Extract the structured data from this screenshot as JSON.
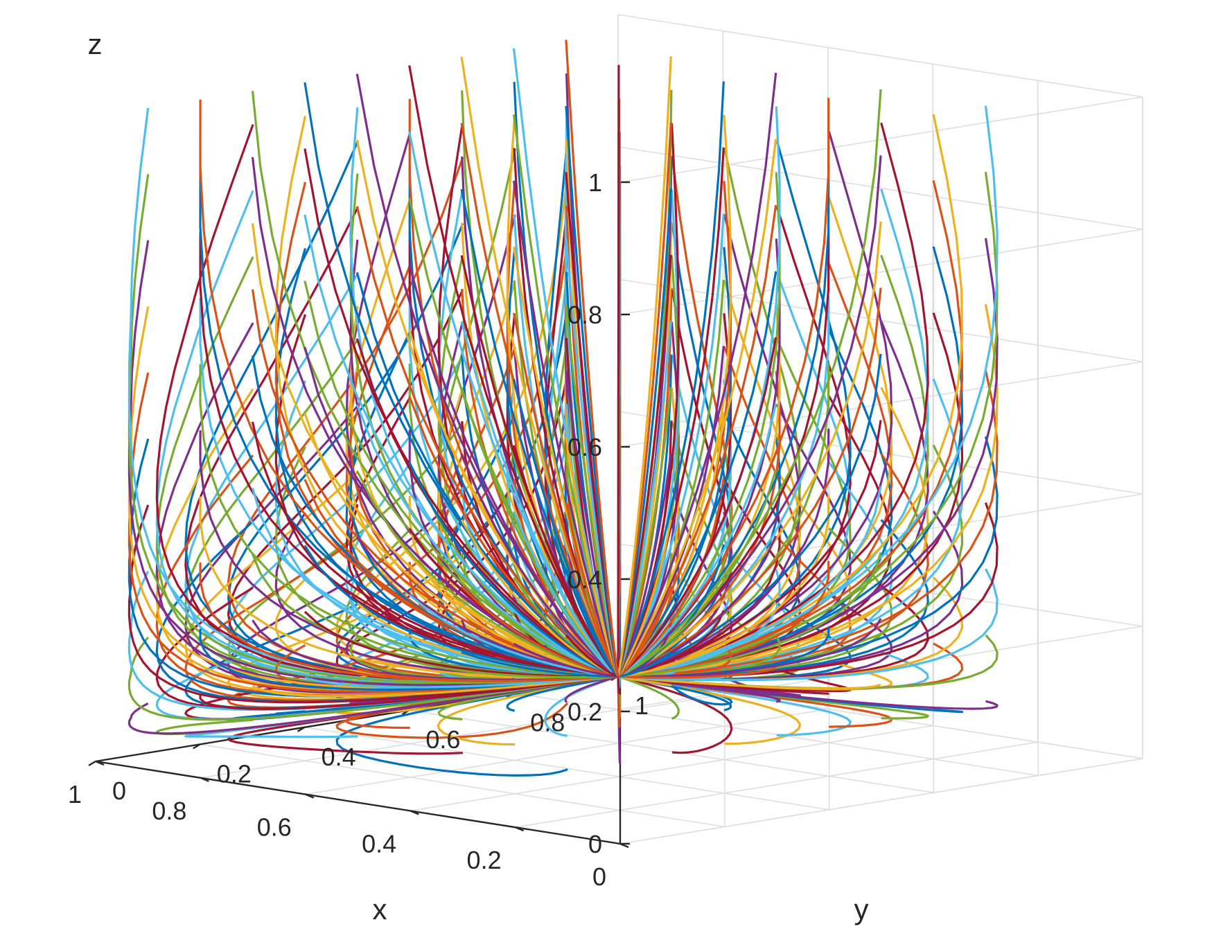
{
  "chart_data": {
    "type": "line",
    "projection": "3d",
    "xlabel": "x",
    "ylabel": "y",
    "zlabel": "z",
    "xlim": [
      0,
      1
    ],
    "ylim": [
      0,
      1
    ],
    "zlim": [
      0,
      1
    ],
    "x_ticks": [
      "0",
      "0.2",
      "0.4",
      "0.6",
      "0.8",
      "1"
    ],
    "y_ticks": [
      "0",
      "0.2",
      "0.4",
      "0.6",
      "0.8",
      "1"
    ],
    "z_ticks": [
      "0",
      "0.2",
      "0.4",
      "0.6",
      "0.8",
      "1"
    ],
    "grid": true,
    "legend": "none",
    "attractor": [
      1,
      1,
      0
    ],
    "colors": [
      "#0072BD",
      "#D95319",
      "#EDB120",
      "#7E2F8E",
      "#77AC30",
      "#4DBEEE",
      "#A2142F"
    ],
    "initial_x": [
      0.1,
      0.3,
      0.5,
      0.7,
      0.9
    ],
    "initial_y": [
      0.0,
      0.1,
      0.2,
      0.3,
      0.4,
      0.5,
      0.6,
      0.7,
      0.8
    ],
    "initial_z": [
      0.1,
      0.2,
      0.3,
      0.4,
      0.5,
      0.6,
      0.7,
      0.8,
      0.9,
      1.0
    ],
    "series_description_note": ""
  }
}
